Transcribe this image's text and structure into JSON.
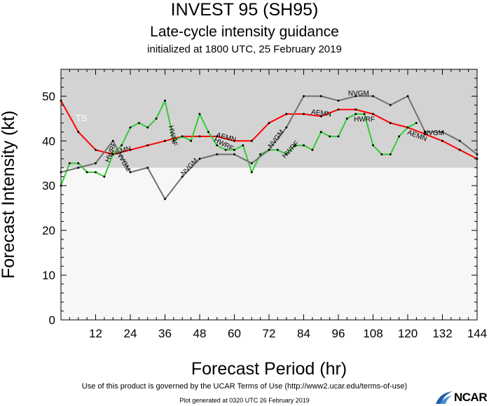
{
  "header": {
    "title": "INVEST 95 (SH95)",
    "subtitle": "Late-cycle intensity guidance",
    "init": "initialized at 1800 UTC, 25 February 2019"
  },
  "footer": {
    "terms": "Use of this product is governed by the UCAR Terms of Use (http://www2.ucar.edu/terms-of-use)",
    "generated": "Plot generated at 0320 UTC   26 February 2019",
    "logo": "NCAR"
  },
  "colors": {
    "shade": "#d3d3d3",
    "plot_bg": "#f7f7f7",
    "aemn": "#ff0000",
    "hwrf": "#33cc33",
    "nvgm": "#707070"
  },
  "chart_data": {
    "type": "line",
    "title": "INVEST 95 (SH95)",
    "subtitle": "Late-cycle intensity guidance",
    "xlabel": "Forecast Period (hr)",
    "ylabel": "Forecast Intensity (kt)",
    "xlim": [
      0,
      144
    ],
    "ylim": [
      0,
      56
    ],
    "xticks": [
      12,
      24,
      36,
      48,
      60,
      72,
      84,
      96,
      108,
      120,
      132,
      144
    ],
    "yticks": [
      0,
      10,
      20,
      30,
      40,
      50
    ],
    "shaded_band": {
      "from": 34,
      "to": 56,
      "label": "TS"
    },
    "series": [
      {
        "name": "AEMN",
        "color": "#ff0000",
        "points": [
          [
            0,
            49
          ],
          [
            6,
            42
          ],
          [
            12,
            38
          ],
          [
            18,
            37
          ],
          [
            24,
            38
          ],
          [
            30,
            39
          ],
          [
            36,
            40
          ],
          [
            42,
            41
          ],
          [
            48,
            41
          ],
          [
            54,
            41
          ],
          [
            60,
            40
          ],
          [
            66,
            40
          ],
          [
            72,
            44
          ],
          [
            78,
            46
          ],
          [
            84,
            46
          ],
          [
            90,
            45.5
          ],
          [
            96,
            47
          ],
          [
            102,
            47
          ],
          [
            108,
            46
          ],
          [
            114,
            44
          ],
          [
            120,
            43
          ],
          [
            126,
            41.5
          ],
          [
            132,
            40
          ],
          [
            138,
            38
          ],
          [
            144,
            36
          ]
        ],
        "labels": [
          [
            21,
            37.8
          ],
          [
            57,
            40.8
          ],
          [
            90,
            46.2
          ],
          [
            123,
            41.2
          ]
        ]
      },
      {
        "name": "HWRF",
        "color": "#33cc33",
        "points": [
          [
            0,
            30
          ],
          [
            3,
            35
          ],
          [
            6,
            35
          ],
          [
            9,
            33
          ],
          [
            12,
            33
          ],
          [
            15,
            32
          ],
          [
            18,
            37
          ],
          [
            21,
            39
          ],
          [
            24,
            43
          ],
          [
            27,
            44
          ],
          [
            30,
            43
          ],
          [
            33,
            45
          ],
          [
            36,
            49
          ],
          [
            39,
            40
          ],
          [
            42,
            41
          ],
          [
            45,
            40
          ],
          [
            48,
            46
          ],
          [
            51,
            42
          ],
          [
            54,
            39
          ],
          [
            57,
            38
          ],
          [
            60,
            38
          ],
          [
            63,
            39
          ],
          [
            66,
            33
          ],
          [
            69,
            37
          ],
          [
            72,
            38
          ],
          [
            75,
            38
          ],
          [
            78,
            37
          ],
          [
            81,
            39
          ],
          [
            84,
            39
          ],
          [
            87,
            38
          ],
          [
            90,
            42
          ],
          [
            93,
            41
          ],
          [
            96,
            41
          ],
          [
            99,
            45
          ],
          [
            102,
            46
          ],
          [
            105,
            46
          ],
          [
            108,
            39
          ],
          [
            111,
            37
          ],
          [
            114,
            37
          ],
          [
            117,
            41
          ],
          [
            120,
            43
          ],
          [
            123,
            44
          ]
        ],
        "labels": [
          [
            18,
            37.8
          ],
          [
            38,
            41.5
          ],
          [
            56,
            39.3
          ],
          [
            80,
            38.2
          ],
          [
            105,
            44.8
          ]
        ]
      },
      {
        "name": "NVGM",
        "color": "#707070",
        "points": [
          [
            0,
            33
          ],
          [
            6,
            34
          ],
          [
            12,
            35
          ],
          [
            18,
            40
          ],
          [
            24,
            33
          ],
          [
            30,
            34
          ],
          [
            36,
            27
          ],
          [
            42,
            32
          ],
          [
            48,
            36
          ],
          [
            54,
            37
          ],
          [
            60,
            37
          ],
          [
            66,
            35
          ],
          [
            72,
            38
          ],
          [
            78,
            43
          ],
          [
            84,
            50
          ],
          [
            90,
            50
          ],
          [
            96,
            49
          ],
          [
            102,
            50
          ],
          [
            108,
            50
          ],
          [
            114,
            48
          ],
          [
            120,
            50
          ],
          [
            126,
            42
          ],
          [
            132,
            42
          ],
          [
            138,
            40
          ],
          [
            144,
            37
          ]
        ],
        "labels": [
          [
            21,
            35.6
          ],
          [
            45,
            34.3
          ],
          [
            75,
            40.6
          ],
          [
            103,
            50.6
          ],
          [
            129,
            41.8
          ]
        ]
      }
    ]
  }
}
